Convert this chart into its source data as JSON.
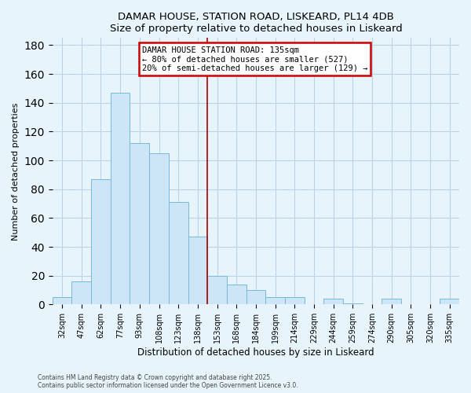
{
  "title": "DAMAR HOUSE, STATION ROAD, LISKEARD, PL14 4DB",
  "subtitle": "Size of property relative to detached houses in Liskeard",
  "xlabel": "Distribution of detached houses by size in Liskeard",
  "ylabel": "Number of detached properties",
  "bar_labels": [
    "32sqm",
    "47sqm",
    "62sqm",
    "77sqm",
    "93sqm",
    "108sqm",
    "123sqm",
    "138sqm",
    "153sqm",
    "168sqm",
    "184sqm",
    "199sqm",
    "214sqm",
    "229sqm",
    "244sqm",
    "259sqm",
    "274sqm",
    "290sqm",
    "305sqm",
    "320sqm",
    "335sqm"
  ],
  "bar_values": [
    5,
    16,
    87,
    147,
    112,
    105,
    71,
    47,
    20,
    14,
    10,
    5,
    5,
    0,
    4,
    1,
    0,
    4,
    0,
    0,
    4
  ],
  "bar_color": "#cce5f7",
  "bar_edge_color": "#7ab8e0",
  "ylim": [
    0,
    185
  ],
  "yticks": [
    0,
    20,
    40,
    60,
    80,
    100,
    120,
    140,
    160,
    180
  ],
  "vline_index": 7,
  "vline_color": "#aa0000",
  "annotation_title": "DAMAR HOUSE STATION ROAD: 135sqm",
  "annotation_line1": "← 80% of detached houses are smaller (527)",
  "annotation_line2": "20% of semi-detached houses are larger (129) →",
  "annotation_box_color": "#ffffff",
  "annotation_box_edge": "#cc0000",
  "background_color": "#e8f4fc",
  "grid_color": "#b8d4e8",
  "footer1": "Contains HM Land Registry data © Crown copyright and database right 2025.",
  "footer2": "Contains public sector information licensed under the Open Government Licence v3.0."
}
